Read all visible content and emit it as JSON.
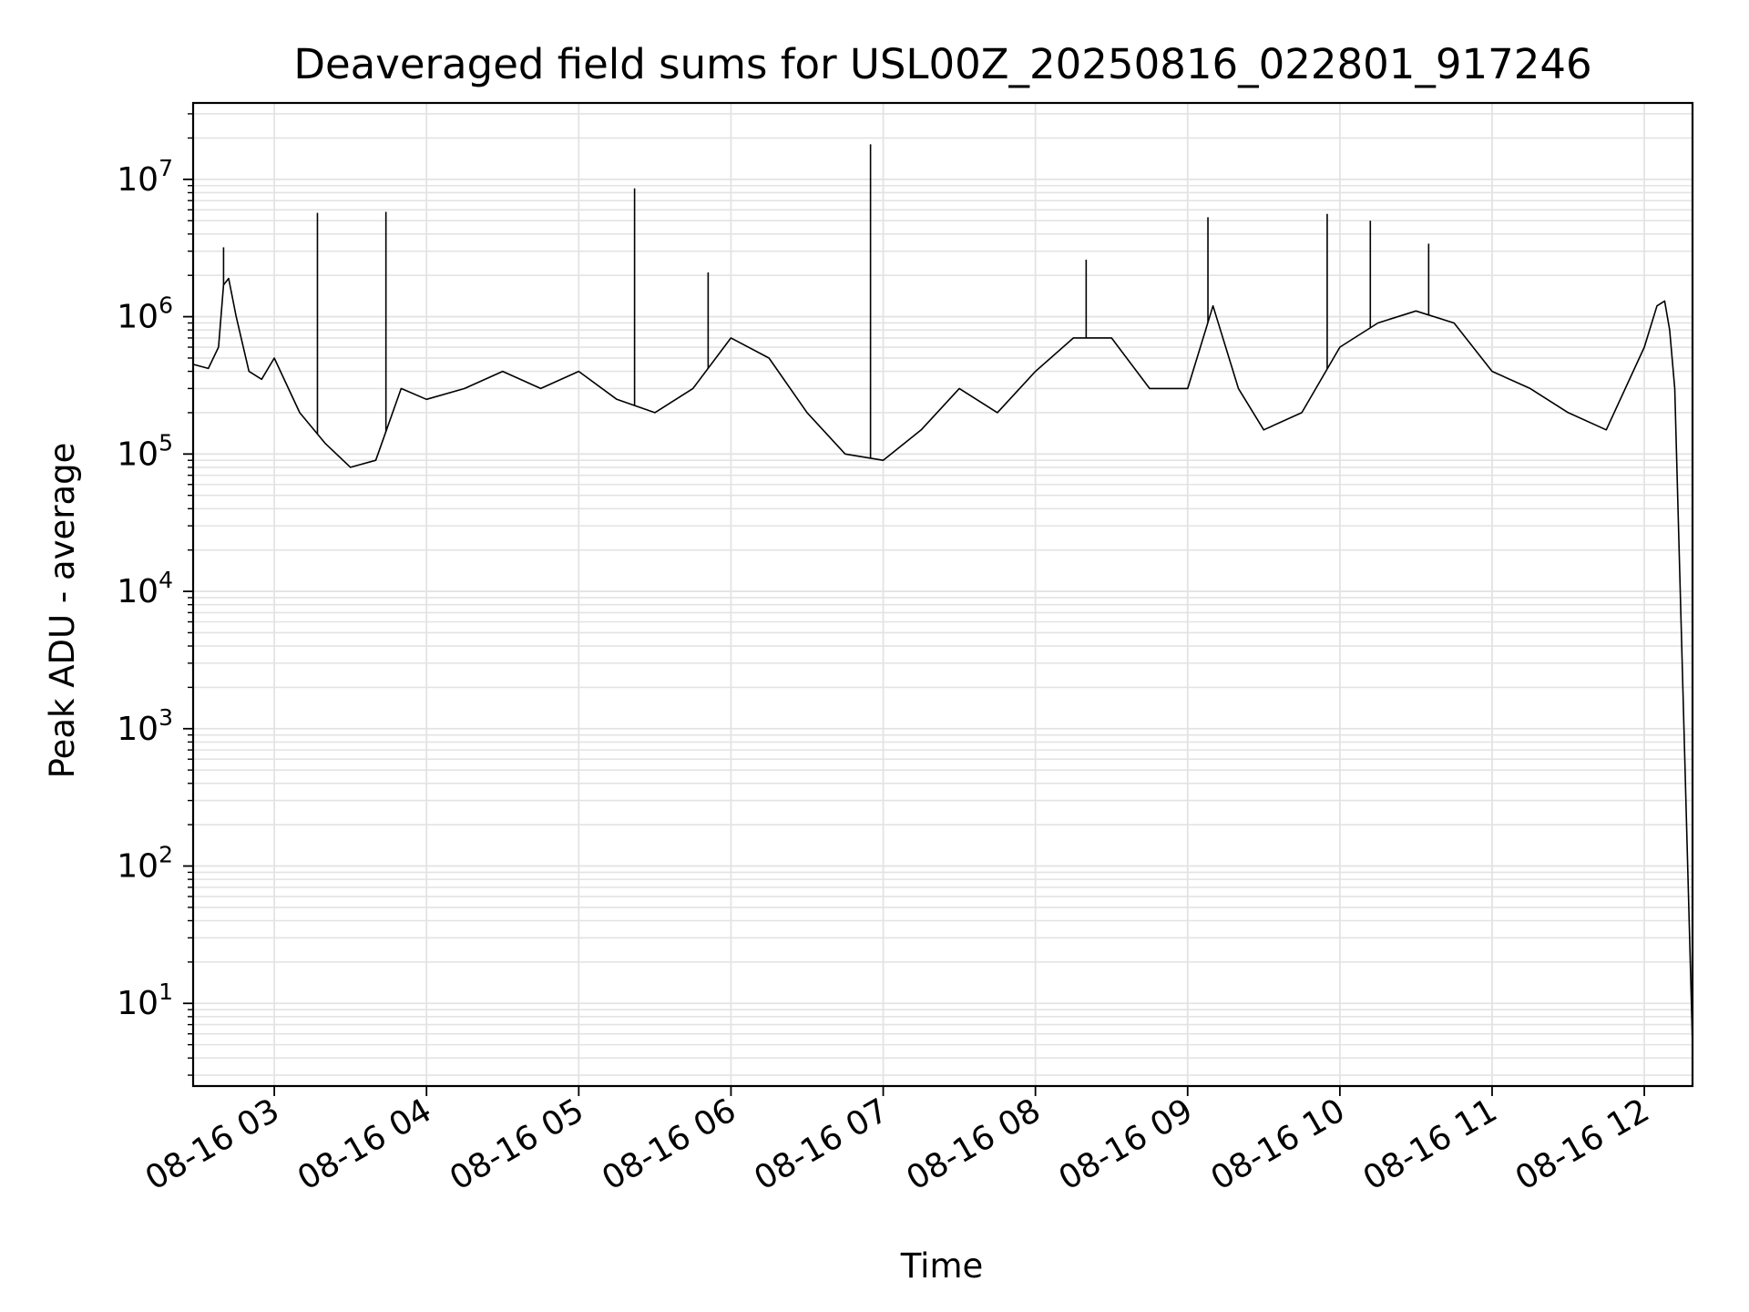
{
  "chart_data": {
    "type": "line",
    "title": "Deaveraged field sums for USL00Z_20250816_022801_917246",
    "xlabel": "Time",
    "ylabel": "Peak ADU - average",
    "yscale": "log",
    "grid": true,
    "legend": "none",
    "line_color": "#000000",
    "grid_color": "#e3e3e3",
    "xlim": [
      "2025-08-16 02:28",
      "2025-08-16 12:19"
    ],
    "ylim": [
      2.5,
      36000000
    ],
    "x_ticks": [
      {
        "value": "2025-08-16 03:00",
        "label": "08-16 03"
      },
      {
        "value": "2025-08-16 04:00",
        "label": "08-16 04"
      },
      {
        "value": "2025-08-16 05:00",
        "label": "08-16 05"
      },
      {
        "value": "2025-08-16 06:00",
        "label": "08-16 06"
      },
      {
        "value": "2025-08-16 07:00",
        "label": "08-16 07"
      },
      {
        "value": "2025-08-16 08:00",
        "label": "08-16 08"
      },
      {
        "value": "2025-08-16 09:00",
        "label": "08-16 09"
      },
      {
        "value": "2025-08-16 10:00",
        "label": "08-16 10"
      },
      {
        "value": "2025-08-16 11:00",
        "label": "08-16 11"
      },
      {
        "value": "2025-08-16 12:00",
        "label": "08-16 12"
      }
    ],
    "y_ticks": [
      {
        "value": 10,
        "base": "10",
        "exp": "1"
      },
      {
        "value": 100,
        "base": "10",
        "exp": "2"
      },
      {
        "value": 1000,
        "base": "10",
        "exp": "3"
      },
      {
        "value": 10000,
        "base": "10",
        "exp": "4"
      },
      {
        "value": 100000,
        "base": "10",
        "exp": "5"
      },
      {
        "value": 1000000,
        "base": "10",
        "exp": "6"
      },
      {
        "value": 10000000,
        "base": "10",
        "exp": "7"
      }
    ],
    "series": [
      {
        "x": [
          "2025-08-16 02:28",
          "2025-08-16 02:34",
          "2025-08-16 02:38",
          "2025-08-16 02:40",
          "2025-08-16 02:42",
          "2025-08-16 02:45",
          "2025-08-16 02:50",
          "2025-08-16 02:55",
          "2025-08-16 03:00",
          "2025-08-16 03:10",
          "2025-08-16 03:20",
          "2025-08-16 03:30",
          "2025-08-16 03:40",
          "2025-08-16 03:50",
          "2025-08-16 04:00",
          "2025-08-16 04:15",
          "2025-08-16 04:30",
          "2025-08-16 04:45",
          "2025-08-16 05:00",
          "2025-08-16 05:15",
          "2025-08-16 05:30",
          "2025-08-16 05:45",
          "2025-08-16 06:00",
          "2025-08-16 06:15",
          "2025-08-16 06:30",
          "2025-08-16 06:45",
          "2025-08-16 07:00",
          "2025-08-16 07:15",
          "2025-08-16 07:30",
          "2025-08-16 07:45",
          "2025-08-16 08:00",
          "2025-08-16 08:15",
          "2025-08-16 08:30",
          "2025-08-16 08:45",
          "2025-08-16 09:00",
          "2025-08-16 09:10",
          "2025-08-16 09:20",
          "2025-08-16 09:30",
          "2025-08-16 09:45",
          "2025-08-16 10:00",
          "2025-08-16 10:15",
          "2025-08-16 10:30",
          "2025-08-16 10:45",
          "2025-08-16 11:00",
          "2025-08-16 11:15",
          "2025-08-16 11:30",
          "2025-08-16 11:45",
          "2025-08-16 12:00",
          "2025-08-16 12:05",
          "2025-08-16 12:08",
          "2025-08-16 12:10",
          "2025-08-16 12:12",
          "2025-08-16 12:19"
        ],
        "y": [
          450000,
          420000,
          600000,
          1700000,
          1900000,
          1000000,
          400000,
          350000,
          500000,
          200000,
          120000,
          80000,
          90000,
          300000,
          250000,
          300000,
          400000,
          300000,
          400000,
          250000,
          200000,
          300000,
          700000,
          500000,
          200000,
          100000,
          90000,
          150000,
          300000,
          200000,
          400000,
          700000,
          700000,
          300000,
          300000,
          1200000,
          300000,
          150000,
          200000,
          600000,
          900000,
          1100000,
          900000,
          400000,
          300000,
          200000,
          150000,
          600000,
          1200000,
          1300000,
          800000,
          300000,
          5
        ]
      }
    ],
    "spikes": [
      {
        "x": "2025-08-16 02:40",
        "y": 3200000
      },
      {
        "x": "2025-08-16 03:17",
        "y": 5700000
      },
      {
        "x": "2025-08-16 03:44",
        "y": 5800000
      },
      {
        "x": "2025-08-16 05:22",
        "y": 8600000
      },
      {
        "x": "2025-08-16 05:51",
        "y": 2100000
      },
      {
        "x": "2025-08-16 06:55",
        "y": 18000000
      },
      {
        "x": "2025-08-16 08:20",
        "y": 2600000
      },
      {
        "x": "2025-08-16 09:08",
        "y": 5300000
      },
      {
        "x": "2025-08-16 09:55",
        "y": 5600000
      },
      {
        "x": "2025-08-16 10:12",
        "y": 5000000
      },
      {
        "x": "2025-08-16 10:35",
        "y": 3400000
      }
    ]
  }
}
